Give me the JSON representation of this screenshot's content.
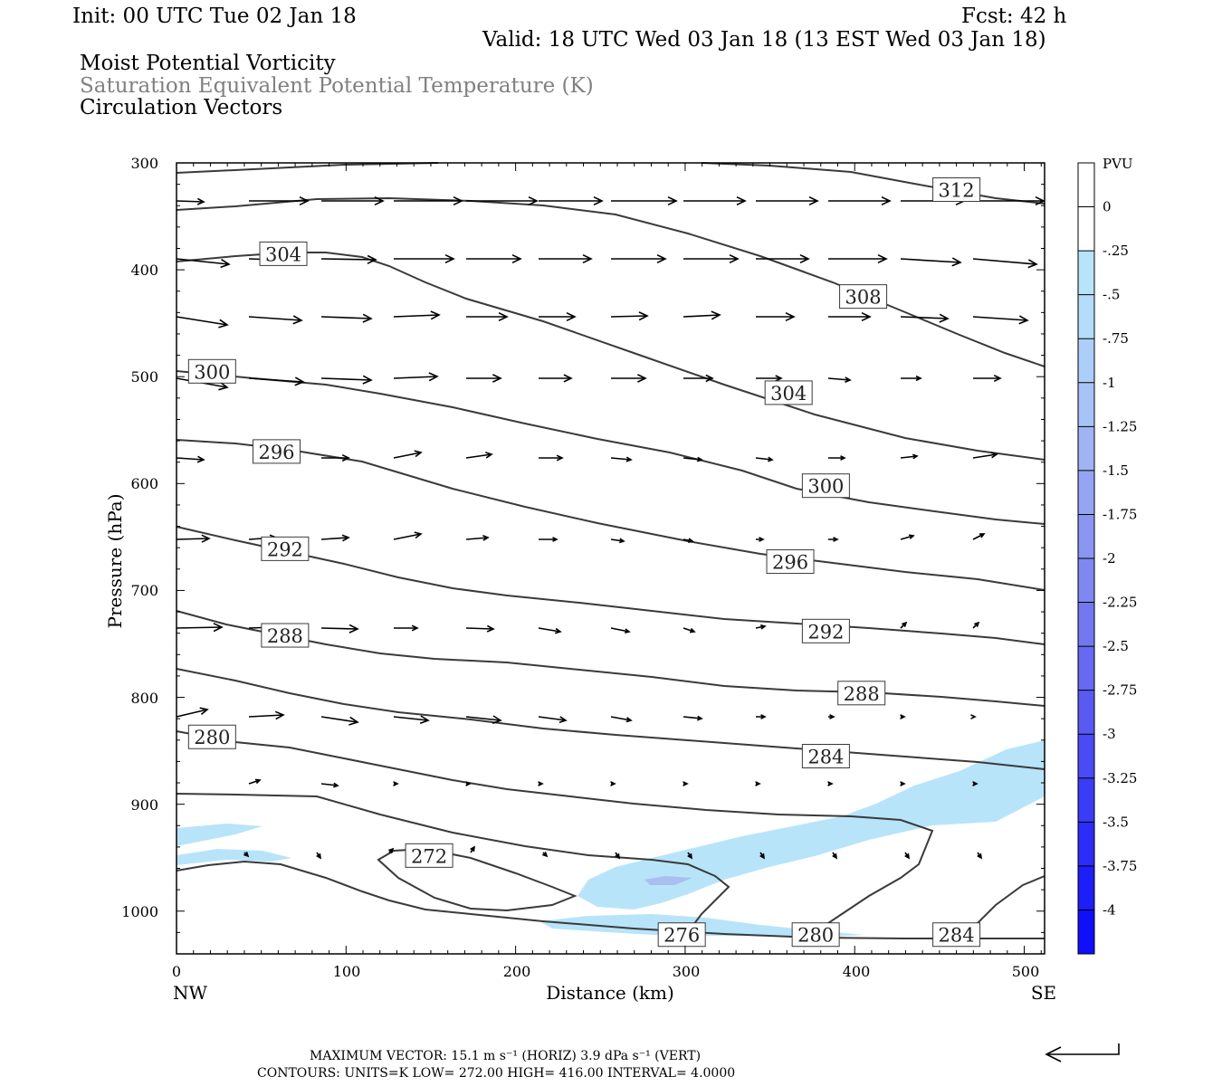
{
  "header": {
    "init": "Init: 00 UTC Tue 02 Jan 18",
    "fcst": "Fcst:   42 h",
    "valid": "Valid: 18 UTC Wed 03 Jan 18 (13 EST Wed 03 Jan 18)",
    "field1": "Moist Potential Vorticity",
    "field2": "Saturation Equivalent Potential Temperature (K)",
    "field3": "Circulation Vectors"
  },
  "footer": {
    "max_vector": "MAXIMUM VECTOR:  15.1 m s⁻¹ (HORIZ)          3.9 dPa s⁻¹ (VERT)",
    "contours": "CONTOURS:  UNITS=K  LOW=  272.00        HIGH=  416.00        INTERVAL=    4.0000"
  },
  "colors": {
    "contour": "#3a3a3a",
    "pv_shade_light": "#b8e4fa",
    "pv_shade_med": "#a8bff0",
    "text_grey": "#808080"
  },
  "chart_data": {
    "type": "cross-section",
    "xlabel": "Distance (km)",
    "ylabel": "Pressure (hPa)",
    "xlim": [
      0,
      512
    ],
    "ylim": [
      1040,
      300
    ],
    "x_ticks": [
      "0",
      "100",
      "200",
      "300",
      "400",
      "500"
    ],
    "y_ticks": [
      "300",
      "400",
      "500",
      "600",
      "700",
      "800",
      "900",
      "1000"
    ],
    "x_end_labels": {
      "left": "NW",
      "right": "SE"
    },
    "colorbar": {
      "units": "PVU",
      "ticks": [
        "0",
        "-.25",
        "-.5",
        "-.75",
        "-1",
        "-1.25",
        "-1.5",
        "-1.75",
        "-2",
        "-2.25",
        "-2.5",
        "-2.75",
        "-3",
        "-3.25",
        "-3.5",
        "-3.75",
        "-4"
      ],
      "colors": [
        "#ffffff",
        "#ffffff",
        "#b8e4fa",
        "#b3ddf9",
        "#adcff7",
        "#a8c4f6",
        "#a0b4f4",
        "#95a5f3",
        "#8a96f2",
        "#7f87f1",
        "#7378f0",
        "#6669f1",
        "#585af2",
        "#4a4bf4",
        "#3b3cf6",
        "#2c2df8",
        "#1e1ef9",
        "#0f0ffb"
      ]
    },
    "contour_labels": [
      {
        "value": "312",
        "x": 460,
        "p": 325
      },
      {
        "value": "304",
        "x": 63,
        "p": 385
      },
      {
        "value": "308",
        "x": 405,
        "p": 425
      },
      {
        "value": "300",
        "x": 21,
        "p": 495
      },
      {
        "value": "304",
        "x": 361,
        "p": 515
      },
      {
        "value": "296",
        "x": 59,
        "p": 570
      },
      {
        "value": "300",
        "x": 383,
        "p": 602
      },
      {
        "value": "292",
        "x": 64,
        "p": 661
      },
      {
        "value": "296",
        "x": 362,
        "p": 673
      },
      {
        "value": "288",
        "x": 64,
        "p": 742
      },
      {
        "value": "292",
        "x": 383,
        "p": 738
      },
      {
        "value": "288",
        "x": 404,
        "p": 796
      },
      {
        "value": "280",
        "x": 21,
        "p": 837
      },
      {
        "value": "284",
        "x": 383,
        "p": 855
      },
      {
        "value": "272",
        "x": 149,
        "p": 948
      },
      {
        "value": "276",
        "x": 298,
        "p": 1022
      },
      {
        "value": "280",
        "x": 377,
        "p": 1022
      },
      {
        "value": "284",
        "x": 460,
        "p": 1022
      }
    ]
  }
}
